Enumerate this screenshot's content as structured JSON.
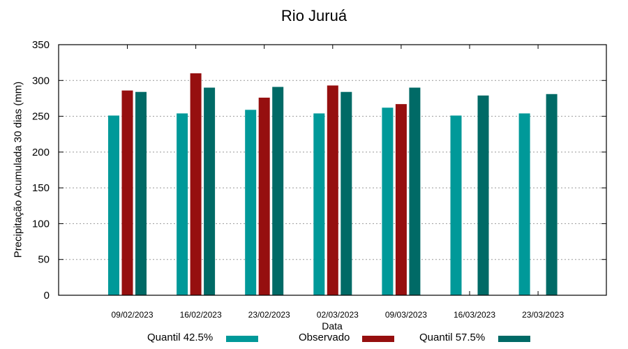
{
  "chart_data": {
    "type": "bar",
    "title": "Rio Juruá",
    "xlabel": "Data",
    "ylabel": "Precipitação Acumulada 30 dias (mm)",
    "ylim": [
      0,
      350
    ],
    "yticks": [
      0,
      50,
      100,
      150,
      200,
      250,
      300,
      350
    ],
    "grid": "horizontal dotted",
    "legend_position": "bottom",
    "categories": [
      "09/02/2023",
      "16/02/2023",
      "23/02/2023",
      "02/03/2023",
      "09/03/2023",
      "16/03/2023",
      "23/03/2023"
    ],
    "series": [
      {
        "name": "Quantil 42.5%",
        "color": "#009999",
        "values": [
          251,
          254,
          259,
          254,
          262,
          251,
          254
        ]
      },
      {
        "name": "Observado",
        "color": "#960f0f",
        "values": [
          286,
          310,
          276,
          293,
          267,
          null,
          null
        ]
      },
      {
        "name": "Quantil 57.5%",
        "color": "#006a66",
        "values": [
          284,
          290,
          291,
          284,
          290,
          279,
          281
        ]
      }
    ]
  },
  "legend": [
    {
      "label": "Quantil 42.5%",
      "color": "#009999"
    },
    {
      "label": "Observado",
      "color": "#960f0f"
    },
    {
      "label": "Quantil 57.5%",
      "color": "#006a66"
    }
  ]
}
